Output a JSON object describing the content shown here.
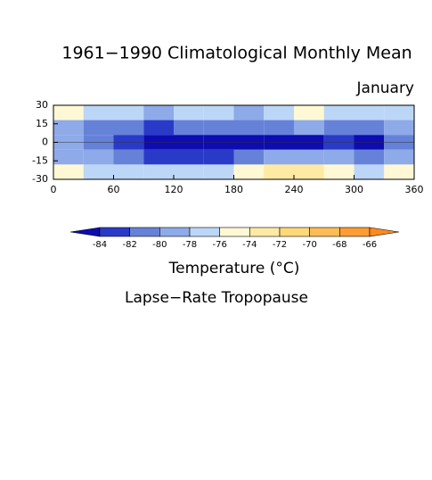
{
  "chart_data": {
    "type": "contour",
    "title": "1961−1990 Climatological Monthly Mean",
    "subtitle": "January",
    "colorbar_title": "Temperature (°C)",
    "field_label": "Lapse−Rate Tropopause",
    "xlim": [
      0,
      360
    ],
    "xticks": [
      0,
      60,
      120,
      180,
      240,
      300,
      360
    ],
    "ylim": [
      -30,
      30
    ],
    "yticks": [
      30,
      15,
      0,
      -15,
      -30
    ],
    "x": [
      15,
      45,
      75,
      105,
      135,
      165,
      195,
      225,
      255,
      285,
      315,
      345
    ],
    "y": [
      24,
      12,
      0,
      -12,
      -24
    ],
    "z": [
      [
        -75,
        -78,
        -78,
        -79,
        -78,
        -78,
        -79,
        -77,
        -75,
        -78,
        -78,
        -77
      ],
      [
        -79,
        -81,
        -82,
        -83,
        -82,
        -82,
        -82,
        -81,
        -80,
        -81,
        -81,
        -80
      ],
      [
        -80,
        -81,
        -83,
        -85,
        -85,
        -85,
        -85,
        -85,
        -85,
        -84,
        -85,
        -82
      ],
      [
        -79,
        -80,
        -81,
        -83,
        -84,
        -84,
        -81,
        -79,
        -80,
        -80,
        -81,
        -79
      ],
      [
        -76,
        -77,
        -78,
        -78,
        -78,
        -77,
        -76,
        -73,
        -74,
        -76,
        -77,
        -76
      ]
    ],
    "levels": [
      -84,
      -82,
      -80,
      -78,
      -76,
      -74,
      -72,
      -70,
      -68,
      -66
    ],
    "colors": [
      "#0c0cb0",
      "#2a3ac8",
      "#6682d8",
      "#8eaae8",
      "#bcd6f8",
      "#fff8d4",
      "#ffeaa4",
      "#ffd878",
      "#ffbc56",
      "#ff9c34",
      "#ff8a1c"
    ]
  }
}
